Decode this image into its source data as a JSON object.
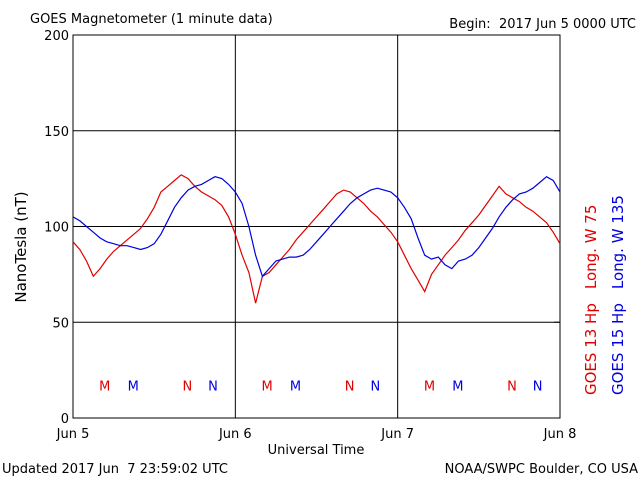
{
  "chart_data": {
    "type": "line",
    "title": "GOES Magnetometer (1 minute data)",
    "subtitle": "Begin:  2017 Jun 5 0000 UTC",
    "x_label": "Universal Time",
    "y_label": "NanoTesla (nT)",
    "footer_left": "Updated 2017 Jun  7 23:59:02 UTC",
    "footer_right": "NOAA/SWPC Boulder, CO USA",
    "grid": true,
    "legend": "right",
    "xlim": [
      0,
      72
    ],
    "xticks": [
      {
        "value": 0,
        "label": "Jun 5"
      },
      {
        "value": 24,
        "label": "Jun 6"
      },
      {
        "value": 48,
        "label": "Jun 7"
      },
      {
        "value": 72,
        "label": "Jun 8"
      }
    ],
    "ylim": [
      0,
      200
    ],
    "yticks": [
      0,
      50,
      100,
      150,
      200
    ],
    "x": [
      0,
      1,
      2,
      3,
      4,
      5,
      6,
      7,
      8,
      9,
      10,
      11,
      12,
      13,
      14,
      15,
      16,
      17,
      18,
      19,
      20,
      21,
      22,
      23,
      24,
      25,
      26,
      27,
      28,
      29,
      30,
      31,
      32,
      33,
      34,
      35,
      36,
      37,
      38,
      39,
      40,
      41,
      42,
      43,
      44,
      45,
      46,
      47,
      48,
      49,
      50,
      51,
      52,
      53,
      54,
      55,
      56,
      57,
      58,
      59,
      60,
      61,
      62,
      63,
      64,
      65,
      66,
      67,
      68,
      69,
      70,
      71,
      72
    ],
    "series": [
      {
        "name": "GOES 13 Hp",
        "longitude": "Long. W 75",
        "color": "#e00000",
        "values": [
          92,
          88,
          82,
          74,
          78,
          83,
          87,
          90,
          93,
          96,
          99,
          104,
          110,
          118,
          121,
          124,
          127,
          125,
          121,
          118,
          116,
          114,
          111,
          105,
          96,
          85,
          76,
          60,
          74,
          76,
          80,
          84,
          88,
          93,
          97,
          101,
          105,
          109,
          113,
          117,
          119,
          118,
          115,
          112,
          108,
          105,
          101,
          97,
          92,
          85,
          78,
          72,
          66,
          75,
          80,
          85,
          89,
          93,
          98,
          102,
          106,
          111,
          116,
          121,
          117,
          115,
          113,
          110,
          108,
          105,
          102,
          97,
          91
        ]
      },
      {
        "name": "GOES 15 Hp",
        "longitude": "Long. W 135",
        "color": "#0000e0",
        "values": [
          105,
          103,
          100,
          97,
          94,
          92,
          91,
          90,
          90,
          89,
          88,
          89,
          91,
          96,
          103,
          110,
          115,
          119,
          121,
          122,
          124,
          126,
          125,
          122,
          118,
          112,
          100,
          85,
          74,
          78,
          82,
          83,
          84,
          84,
          85,
          88,
          92,
          96,
          100,
          104,
          108,
          112,
          115,
          117,
          119,
          120,
          119,
          118,
          115,
          110,
          104,
          94,
          85,
          83,
          84,
          80,
          78,
          82,
          83,
          85,
          89,
          94,
          99,
          105,
          110,
          114,
          117,
          118,
          120,
          123,
          126,
          124,
          118
        ]
      }
    ],
    "annotations": [
      {
        "text": "M",
        "x": 4.7,
        "y": 17,
        "color": "#e00000"
      },
      {
        "text": "M",
        "x": 8.9,
        "y": 17,
        "color": "#0000e0"
      },
      {
        "text": "N",
        "x": 16.9,
        "y": 17,
        "color": "#e00000"
      },
      {
        "text": "N",
        "x": 20.7,
        "y": 17,
        "color": "#0000e0"
      },
      {
        "text": "M",
        "x": 28.7,
        "y": 17,
        "color": "#e00000"
      },
      {
        "text": "M",
        "x": 32.9,
        "y": 17,
        "color": "#0000e0"
      },
      {
        "text": "N",
        "x": 40.9,
        "y": 17,
        "color": "#e00000"
      },
      {
        "text": "N",
        "x": 44.7,
        "y": 17,
        "color": "#0000e0"
      },
      {
        "text": "M",
        "x": 52.7,
        "y": 17,
        "color": "#e00000"
      },
      {
        "text": "M",
        "x": 56.9,
        "y": 17,
        "color": "#0000e0"
      },
      {
        "text": "N",
        "x": 64.9,
        "y": 17,
        "color": "#e00000"
      },
      {
        "text": "N",
        "x": 68.7,
        "y": 17,
        "color": "#0000e0"
      }
    ]
  }
}
